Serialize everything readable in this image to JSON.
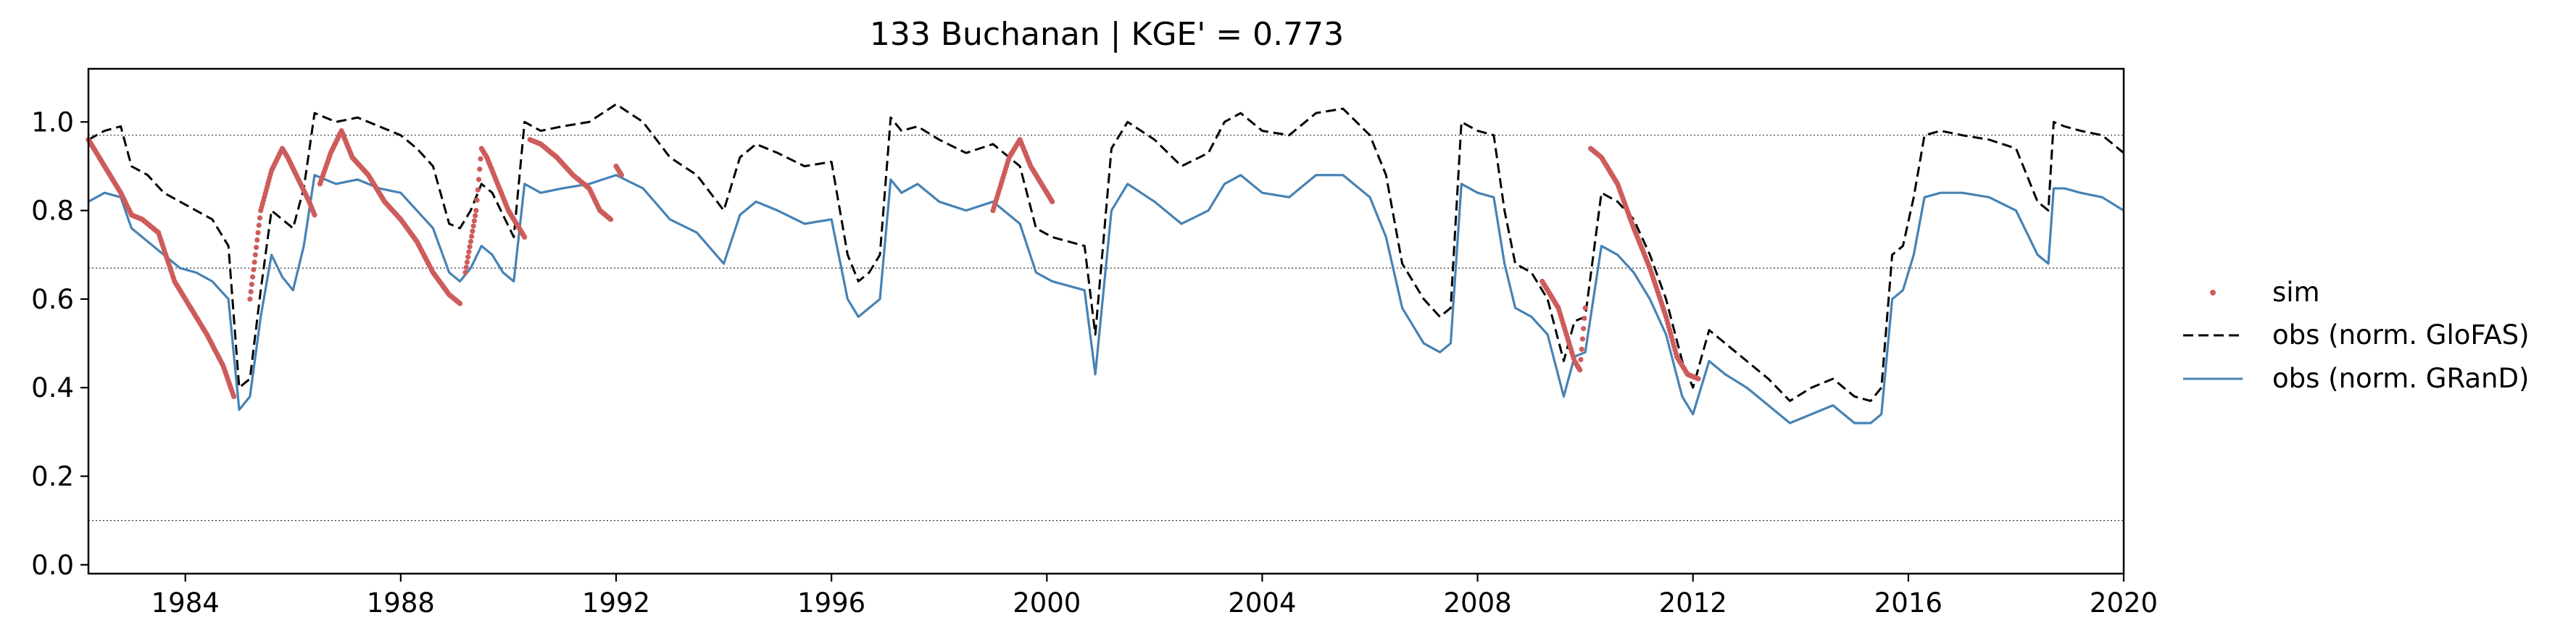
{
  "chart_data": {
    "type": "line",
    "title": "133  Buchanan | KGE' = 0.773",
    "xlabel": "",
    "ylabel": "",
    "xlim": [
      1982.2,
      2020.0
    ],
    "ylim": [
      -0.02,
      1.12
    ],
    "x_ticks": [
      1984,
      1988,
      1992,
      1996,
      2000,
      2004,
      2008,
      2012,
      2016,
      2020
    ],
    "y_ticks": [
      0.0,
      0.2,
      0.4,
      0.6,
      0.8,
      1.0
    ],
    "x_tick_labels": [
      "1984",
      "1988",
      "1992",
      "1996",
      "2000",
      "2004",
      "2008",
      "2012",
      "2016",
      "2020"
    ],
    "y_tick_labels": [
      "0.0",
      "0.2",
      "0.4",
      "0.6",
      "0.8",
      "1.0"
    ],
    "reference_lines": [
      0.97,
      0.67,
      0.1
    ],
    "grid": false,
    "legend_position": "right",
    "colors": {
      "sim": "#cd5c5c",
      "glofas": "#000000",
      "grand": "#4682b4"
    },
    "series": [
      {
        "name": "sim",
        "style": "points",
        "segments": [
          [
            [
              1982.2,
              0.96
            ],
            [
              1982.5,
              0.9
            ],
            [
              1982.8,
              0.84
            ],
            [
              1983.0,
              0.79
            ],
            [
              1983.2,
              0.78
            ],
            [
              1983.5,
              0.75
            ],
            [
              1983.8,
              0.64
            ],
            [
              1984.1,
              0.58
            ],
            [
              1984.4,
              0.52
            ],
            [
              1984.7,
              0.45
            ],
            [
              1984.9,
              0.38
            ]
          ],
          [
            [
              1985.2,
              0.6
            ],
            [
              1985.4,
              0.8
            ],
            [
              1985.6,
              0.89
            ],
            [
              1985.8,
              0.94
            ],
            [
              1985.9,
              0.92
            ],
            [
              1986.1,
              0.87
            ],
            [
              1986.3,
              0.82
            ],
            [
              1986.4,
              0.79
            ]
          ],
          [
            [
              1986.5,
              0.86
            ],
            [
              1986.7,
              0.93
            ],
            [
              1986.9,
              0.98
            ],
            [
              1987.1,
              0.92
            ],
            [
              1987.4,
              0.88
            ],
            [
              1987.7,
              0.82
            ],
            [
              1988.0,
              0.78
            ],
            [
              1988.3,
              0.73
            ],
            [
              1988.6,
              0.66
            ],
            [
              1988.9,
              0.61
            ],
            [
              1989.1,
              0.59
            ]
          ],
          [
            [
              1989.2,
              0.66
            ],
            [
              1989.4,
              0.8
            ],
            [
              1989.5,
              0.94
            ],
            [
              1989.6,
              0.92
            ],
            [
              1989.8,
              0.86
            ],
            [
              1990.0,
              0.8
            ],
            [
              1990.2,
              0.76
            ],
            [
              1990.3,
              0.74
            ]
          ],
          [
            [
              1990.4,
              0.96
            ],
            [
              1990.6,
              0.95
            ],
            [
              1990.9,
              0.92
            ],
            [
              1991.2,
              0.88
            ],
            [
              1991.5,
              0.85
            ],
            [
              1991.7,
              0.8
            ],
            [
              1991.9,
              0.78
            ]
          ],
          [
            [
              1992.0,
              0.9
            ],
            [
              1992.1,
              0.88
            ]
          ],
          [
            [
              1999.0,
              0.8
            ],
            [
              1999.1,
              0.84
            ],
            [
              1999.3,
              0.92
            ],
            [
              1999.5,
              0.96
            ],
            [
              1999.7,
              0.9
            ],
            [
              1999.9,
              0.86
            ],
            [
              2000.1,
              0.82
            ]
          ],
          [
            [
              2009.2,
              0.64
            ],
            [
              2009.5,
              0.58
            ],
            [
              2009.8,
              0.46
            ],
            [
              2009.9,
              0.44
            ],
            [
              2010.0,
              0.58
            ]
          ],
          [
            [
              2010.1,
              0.94
            ],
            [
              2010.3,
              0.92
            ],
            [
              2010.6,
              0.86
            ],
            [
              2010.9,
              0.76
            ],
            [
              2011.2,
              0.67
            ],
            [
              2011.5,
              0.56
            ],
            [
              2011.7,
              0.47
            ],
            [
              2011.9,
              0.43
            ],
            [
              2012.1,
              0.42
            ]
          ]
        ]
      },
      {
        "name": "obs (norm. GloFAS)",
        "style": "dashed",
        "x": [
          1982.2,
          1982.5,
          1982.8,
          1983.0,
          1983.3,
          1983.6,
          1983.9,
          1984.2,
          1984.5,
          1984.8,
          1985.0,
          1985.2,
          1985.4,
          1985.6,
          1985.8,
          1986.0,
          1986.2,
          1986.4,
          1986.8,
          1987.2,
          1987.6,
          1988.0,
          1988.3,
          1988.6,
          1988.9,
          1989.1,
          1989.3,
          1989.5,
          1989.7,
          1989.9,
          1990.1,
          1990.3,
          1990.6,
          1991.0,
          1991.5,
          1992.0,
          1992.5,
          1993.0,
          1993.5,
          1994.0,
          1994.3,
          1994.6,
          1995.0,
          1995.5,
          1996.0,
          1996.3,
          1996.5,
          1996.7,
          1996.9,
          1997.1,
          1997.3,
          1997.6,
          1998.0,
          1998.5,
          1999.0,
          1999.5,
          1999.8,
          2000.1,
          2000.4,
          2000.7,
          2000.9,
          2001.2,
          2001.5,
          2002.0,
          2002.5,
          2003.0,
          2003.3,
          2003.6,
          2004.0,
          2004.5,
          2005.0,
          2005.5,
          2006.0,
          2006.3,
          2006.6,
          2007.0,
          2007.3,
          2007.5,
          2007.7,
          2008.0,
          2008.3,
          2008.5,
          2008.7,
          2009.0,
          2009.3,
          2009.6,
          2009.8,
          2010.0,
          2010.3,
          2010.6,
          2010.9,
          2011.2,
          2011.5,
          2011.8,
          2012.0,
          2012.3,
          2012.6,
          2013.0,
          2013.4,
          2013.8,
          2014.2,
          2014.6,
          2015.0,
          2015.3,
          2015.5,
          2015.7,
          2015.9,
          2016.1,
          2016.3,
          2016.6,
          2017.0,
          2017.5,
          2018.0,
          2018.4,
          2018.6,
          2018.7,
          2018.9,
          2019.2,
          2019.6,
          2020.0
        ],
        "values": [
          0.96,
          0.98,
          0.99,
          0.9,
          0.88,
          0.84,
          0.82,
          0.8,
          0.78,
          0.72,
          0.4,
          0.42,
          0.62,
          0.8,
          0.78,
          0.76,
          0.85,
          1.02,
          1.0,
          1.01,
          0.99,
          0.97,
          0.94,
          0.9,
          0.77,
          0.76,
          0.8,
          0.86,
          0.84,
          0.79,
          0.74,
          1.0,
          0.98,
          0.99,
          1.0,
          1.04,
          1.0,
          0.92,
          0.88,
          0.8,
          0.92,
          0.95,
          0.93,
          0.9,
          0.91,
          0.7,
          0.64,
          0.66,
          0.7,
          1.01,
          0.98,
          0.99,
          0.96,
          0.93,
          0.95,
          0.9,
          0.76,
          0.74,
          0.73,
          0.72,
          0.52,
          0.94,
          1.0,
          0.96,
          0.9,
          0.93,
          1.0,
          1.02,
          0.98,
          0.97,
          1.02,
          1.03,
          0.97,
          0.88,
          0.68,
          0.6,
          0.56,
          0.58,
          1.0,
          0.98,
          0.97,
          0.8,
          0.68,
          0.66,
          0.6,
          0.46,
          0.55,
          0.56,
          0.84,
          0.82,
          0.78,
          0.7,
          0.6,
          0.46,
          0.4,
          0.53,
          0.5,
          0.46,
          0.42,
          0.37,
          0.4,
          0.42,
          0.38,
          0.37,
          0.4,
          0.7,
          0.72,
          0.83,
          0.97,
          0.98,
          0.97,
          0.96,
          0.94,
          0.82,
          0.8,
          1.0,
          0.99,
          0.98,
          0.97,
          0.93
        ],
        "color": "#000000"
      },
      {
        "name": "obs (norm. GRanD)",
        "style": "solid",
        "x": [
          1982.2,
          1982.5,
          1982.8,
          1983.0,
          1983.3,
          1983.6,
          1983.9,
          1984.2,
          1984.5,
          1984.8,
          1985.0,
          1985.2,
          1985.4,
          1985.6,
          1985.8,
          1986.0,
          1986.2,
          1986.4,
          1986.8,
          1987.2,
          1987.6,
          1988.0,
          1988.3,
          1988.6,
          1988.9,
          1989.1,
          1989.3,
          1989.5,
          1989.7,
          1989.9,
          1990.1,
          1990.3,
          1990.6,
          1991.0,
          1991.5,
          1992.0,
          1992.5,
          1993.0,
          1993.5,
          1994.0,
          1994.3,
          1994.6,
          1995.0,
          1995.5,
          1996.0,
          1996.3,
          1996.5,
          1996.7,
          1996.9,
          1997.1,
          1997.3,
          1997.6,
          1998.0,
          1998.5,
          1999.0,
          1999.5,
          1999.8,
          2000.1,
          2000.4,
          2000.7,
          2000.9,
          2001.2,
          2001.5,
          2002.0,
          2002.5,
          2003.0,
          2003.3,
          2003.6,
          2004.0,
          2004.5,
          2005.0,
          2005.5,
          2006.0,
          2006.3,
          2006.6,
          2007.0,
          2007.3,
          2007.5,
          2007.7,
          2008.0,
          2008.3,
          2008.5,
          2008.7,
          2009.0,
          2009.3,
          2009.6,
          2009.8,
          2010.0,
          2010.3,
          2010.6,
          2010.9,
          2011.2,
          2011.5,
          2011.8,
          2012.0,
          2012.3,
          2012.6,
          2013.0,
          2013.4,
          2013.8,
          2014.2,
          2014.6,
          2015.0,
          2015.3,
          2015.5,
          2015.7,
          2015.9,
          2016.1,
          2016.3,
          2016.6,
          2017.0,
          2017.5,
          2018.0,
          2018.4,
          2018.6,
          2018.7,
          2018.9,
          2019.2,
          2019.6,
          2020.0
        ],
        "values": [
          0.82,
          0.84,
          0.83,
          0.76,
          0.73,
          0.7,
          0.67,
          0.66,
          0.64,
          0.6,
          0.35,
          0.38,
          0.56,
          0.7,
          0.65,
          0.62,
          0.72,
          0.88,
          0.86,
          0.87,
          0.85,
          0.84,
          0.8,
          0.76,
          0.66,
          0.64,
          0.67,
          0.72,
          0.7,
          0.66,
          0.64,
          0.86,
          0.84,
          0.85,
          0.86,
          0.88,
          0.85,
          0.78,
          0.75,
          0.68,
          0.79,
          0.82,
          0.8,
          0.77,
          0.78,
          0.6,
          0.56,
          0.58,
          0.6,
          0.87,
          0.84,
          0.86,
          0.82,
          0.8,
          0.82,
          0.77,
          0.66,
          0.64,
          0.63,
          0.62,
          0.43,
          0.8,
          0.86,
          0.82,
          0.77,
          0.8,
          0.86,
          0.88,
          0.84,
          0.83,
          0.88,
          0.88,
          0.83,
          0.74,
          0.58,
          0.5,
          0.48,
          0.5,
          0.86,
          0.84,
          0.83,
          0.68,
          0.58,
          0.56,
          0.52,
          0.38,
          0.47,
          0.48,
          0.72,
          0.7,
          0.66,
          0.6,
          0.52,
          0.38,
          0.34,
          0.46,
          0.43,
          0.4,
          0.36,
          0.32,
          0.34,
          0.36,
          0.32,
          0.32,
          0.34,
          0.6,
          0.62,
          0.7,
          0.83,
          0.84,
          0.84,
          0.83,
          0.8,
          0.7,
          0.68,
          0.85,
          0.85,
          0.84,
          0.83,
          0.8
        ],
        "color": "#4682b4"
      }
    ]
  }
}
